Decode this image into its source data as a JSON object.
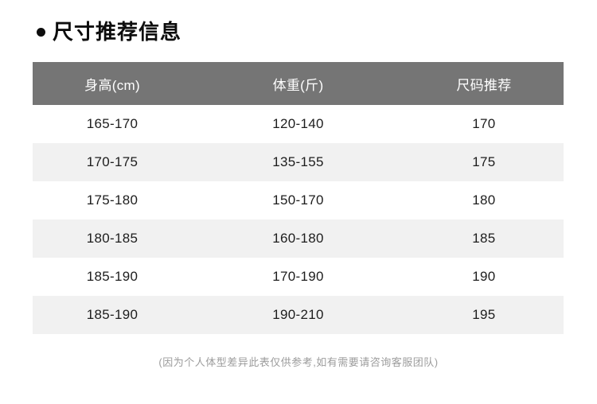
{
  "page": {
    "title": "尺寸推荐信息",
    "footnote": "(因为个人体型差异此表仅供参考,如有需要请咨询客服团队)"
  },
  "colors": {
    "header_bg": "#757575",
    "header_text": "#ffffff",
    "row_alt_bg": "#f1f1f1",
    "row_text": "#1d1d1d",
    "title_text": "#0d0d0d",
    "footnote_text": "#9c9c9c"
  },
  "table": {
    "columns": [
      "身高(cm)",
      "体重(斤)",
      "尺码推荐"
    ],
    "rows": [
      [
        "165-170",
        "120-140",
        "170"
      ],
      [
        "170-175",
        "135-155",
        "175"
      ],
      [
        "175-180",
        "150-170",
        "180"
      ],
      [
        "180-185",
        "160-180",
        "185"
      ],
      [
        "185-190",
        "170-190",
        "190"
      ],
      [
        "185-190",
        "190-210",
        "195"
      ]
    ]
  },
  "chart_data": {
    "type": "table",
    "title": "尺寸推荐信息",
    "columns": [
      "身高(cm)",
      "体重(斤)",
      "尺码推荐"
    ],
    "rows": [
      [
        "165-170",
        "120-140",
        "170"
      ],
      [
        "170-175",
        "135-155",
        "175"
      ],
      [
        "175-180",
        "150-170",
        "180"
      ],
      [
        "180-185",
        "160-180",
        "185"
      ],
      [
        "185-190",
        "170-190",
        "190"
      ],
      [
        "185-190",
        "190-210",
        "195"
      ]
    ],
    "footnote": "(因为个人体型差异此表仅供参考,如有需要请咨询客服团队)"
  }
}
